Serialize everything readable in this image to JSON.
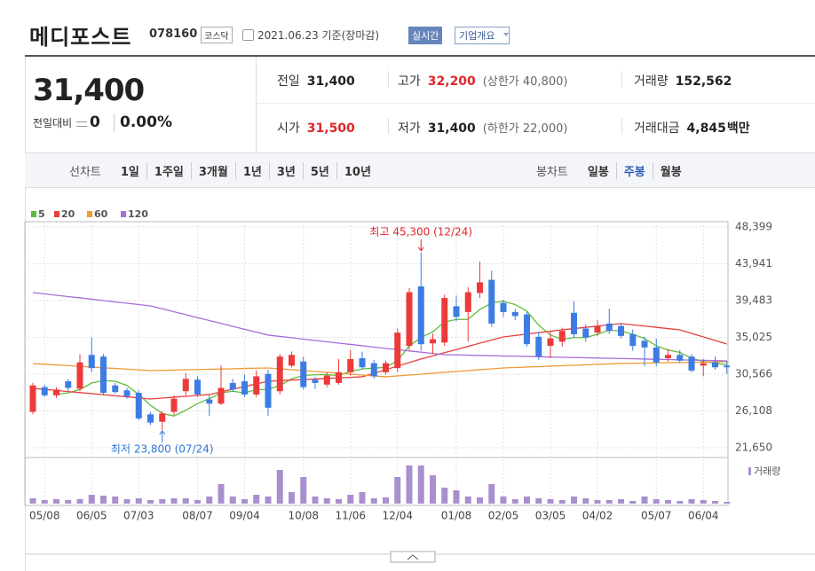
{
  "header": {
    "name": "메디포스트",
    "code": "078160",
    "market": "코스닥",
    "date": "2021.06.23 기준(장마감)",
    "realtime": "실시간",
    "company": "기업개요"
  },
  "quote": {
    "price": "31,400",
    "change_label": "전일대비",
    "change": "0",
    "change_rate": "0.00%"
  },
  "stats": [
    {
      "label": "전일",
      "value": "31,400"
    },
    {
      "label": "고가",
      "value": "32,200",
      "note": "(상한가 40,800)",
      "color": "#e0262b"
    },
    {
      "label": "거래량",
      "value": "152,562"
    },
    {
      "label": "시가",
      "value": "31,500",
      "color": "#e0262b"
    },
    {
      "label": "저가",
      "value": "31,400",
      "note": "(하한가 22,000)"
    },
    {
      "label": "거래대금",
      "value": "4,845",
      "unit": "백만"
    }
  ],
  "tabs": {
    "line_label": "선차트",
    "line": [
      "1일",
      "1주일",
      "3개월",
      "1년",
      "3년",
      "5년",
      "10년"
    ],
    "candle_label": "봉차트",
    "candle": [
      "일봉",
      "주봉",
      "월봉"
    ],
    "active_candle": 1
  },
  "chart": {
    "type": "candlestick",
    "up_color": "#ec3a3a",
    "down_color": "#3c7ce4",
    "ma": [
      {
        "name": "5",
        "color": "#60bd3e",
        "values": [
          null,
          null,
          28100,
          28300,
          28700,
          29500,
          29800,
          29700,
          29200,
          28100,
          26800,
          25800,
          25500,
          26200,
          27000,
          27600,
          28300,
          28500,
          28300,
          28700,
          28700,
          29200,
          30000,
          30400,
          30500,
          30500,
          30400,
          30900,
          31200,
          31300,
          31400,
          32200,
          34000,
          35000,
          35700,
          36900,
          37200,
          37200,
          38400,
          39200,
          39400,
          39000,
          38200,
          36500,
          35300,
          34800,
          35000,
          35000,
          35400,
          35900,
          35800,
          35400,
          34900,
          34000,
          33500,
          33200,
          32500,
          32100,
          31900,
          31700
        ]
      },
      {
        "name": "20",
        "color": "#e6413f",
        "values": [
          28850,
          28720,
          28590,
          28460,
          28330,
          28210,
          28080,
          27950,
          27820,
          27690,
          27560,
          27670,
          27780,
          27880,
          27990,
          28100,
          28420,
          28750,
          29070,
          29390,
          29710,
          29780,
          29850,
          29910,
          29980,
          30050,
          30120,
          30180,
          30250,
          30680,
          31110,
          31540,
          31970,
          32400,
          32780,
          33170,
          33550,
          33930,
          34320,
          34700,
          35080,
          35250,
          35420,
          35600,
          35770,
          35940,
          36090,
          36240,
          36390,
          36540,
          36690,
          36540,
          36390,
          36240,
          36090,
          35940,
          35510,
          35080,
          34650,
          34220
        ]
      },
      {
        "name": "60",
        "color": "#f29a37",
        "values": [
          31860,
          31770,
          31690,
          31600,
          31520,
          31430,
          31340,
          31260,
          31170,
          31090,
          31000,
          31030,
          31060,
          31100,
          31130,
          31160,
          31190,
          31220,
          31260,
          31290,
          31320,
          31210,
          31110,
          31000,
          30890,
          30790,
          30680,
          30570,
          30460,
          30360,
          30250,
          30360,
          30460,
          30570,
          30680,
          30790,
          30890,
          31000,
          31110,
          31210,
          31320,
          31370,
          31430,
          31480,
          31540,
          31590,
          31640,
          31700,
          31750,
          31810,
          31860,
          31880,
          31910,
          31930,
          31950,
          31980,
          32000,
          32020,
          32050,
          32070
        ]
      },
      {
        "name": "120",
        "color": "#a96dd8",
        "values": [
          40450,
          40290,
          40130,
          39970,
          39810,
          39650,
          39480,
          39320,
          39160,
          39000,
          38840,
          38490,
          38130,
          37780,
          37420,
          37070,
          36720,
          36360,
          36010,
          35650,
          35300,
          35140,
          34980,
          34810,
          34650,
          34490,
          34330,
          34170,
          34010,
          33840,
          33680,
          33530,
          33380,
          33230,
          33080,
          32930,
          32900,
          32870,
          32830,
          32800,
          32770,
          32740,
          32710,
          32680,
          32640,
          32610,
          32580,
          32550,
          32520,
          32490,
          32460,
          32430,
          32400,
          32370,
          32340,
          32300,
          32270,
          32240,
          32210,
          32180
        ]
      }
    ],
    "categories": [
      null,
      "05/08",
      null,
      null,
      null,
      "06/05",
      null,
      null,
      null,
      "07/03",
      null,
      null,
      null,
      null,
      "08/07",
      null,
      null,
      null,
      "09/04",
      null,
      null,
      null,
      null,
      "10/08",
      null,
      null,
      null,
      "11/06",
      null,
      null,
      null,
      "12/04",
      null,
      null,
      null,
      null,
      "01/08",
      null,
      null,
      null,
      "02/05",
      null,
      null,
      null,
      "03/05",
      null,
      null,
      null,
      "04/02",
      null,
      null,
      null,
      null,
      "05/07",
      null,
      null,
      null,
      "06/04",
      null,
      null
    ],
    "open": [
      26000,
      29000,
      28000,
      29700,
      28800,
      32900,
      32700,
      29200,
      28600,
      28300,
      25700,
      24800,
      26000,
      28500,
      29900,
      27500,
      27000,
      29500,
      29700,
      28100,
      30600,
      28500,
      31600,
      32100,
      29900,
      29300,
      29500,
      30800,
      32500,
      31900,
      30800,
      31300,
      34000,
      41200,
      34300,
      34400,
      38800,
      38100,
      40400,
      42000,
      39200,
      38100,
      37800,
      35100,
      34000,
      34500,
      38000,
      36100,
      35600,
      36700,
      36400,
      35400,
      34600,
      33800,
      32500,
      32900,
      32700,
      31600,
      32000,
      31600
    ],
    "high": [
      29500,
      29300,
      29000,
      30000,
      33000,
      35000,
      33000,
      29500,
      28900,
      28600,
      26000,
      26100,
      28000,
      30700,
      30300,
      28000,
      31600,
      30000,
      30500,
      31000,
      31100,
      33000,
      33300,
      32700,
      30200,
      30800,
      32400,
      33500,
      33300,
      32300,
      32200,
      36100,
      41000,
      45300,
      35500,
      40200,
      40100,
      41100,
      44200,
      43100,
      39600,
      38500,
      38100,
      35700,
      35700,
      36200,
      39400,
      36600,
      37100,
      38500,
      36800,
      36000,
      35100,
      34900,
      33600,
      33500,
      33000,
      32400,
      32700,
      32200
    ],
    "low": [
      25700,
      27800,
      27700,
      28500,
      28500,
      30800,
      28000,
      28200,
      27600,
      25000,
      24400,
      23800,
      25600,
      28000,
      27800,
      25500,
      26800,
      28400,
      27800,
      27800,
      25500,
      28100,
      31400,
      28700,
      28800,
      29000,
      29300,
      30400,
      31200,
      30000,
      30500,
      30800,
      33500,
      33400,
      33000,
      34000,
      37000,
      34500,
      39800,
      36300,
      37500,
      37100,
      33900,
      32300,
      32500,
      33900,
      35000,
      34500,
      35200,
      35400,
      34900,
      33400,
      31500,
      31500,
      32100,
      31900,
      30800,
      30300,
      31100,
      30600
    ],
    "close": [
      29200,
      28000,
      28700,
      28900,
      32000,
      31300,
      28300,
      28400,
      27900,
      25200,
      24700,
      25800,
      27600,
      30000,
      28100,
      27000,
      28900,
      28700,
      28100,
      30300,
      26500,
      32700,
      32900,
      29000,
      29500,
      30400,
      30800,
      32400,
      31400,
      30300,
      31900,
      35600,
      40500,
      34200,
      34800,
      39800,
      37500,
      40500,
      41700,
      36700,
      38100,
      37600,
      34200,
      32700,
      34900,
      35800,
      35400,
      35000,
      36400,
      35800,
      35200,
      34000,
      33800,
      32000,
      32900,
      32200,
      31000,
      31900,
      31400,
      31400
    ],
    "volume": [
      300000,
      200000,
      250000,
      200000,
      250000,
      500000,
      450000,
      400000,
      250000,
      300000,
      200000,
      250000,
      300000,
      300000,
      200000,
      400000,
      1100000,
      400000,
      250000,
      500000,
      400000,
      1900000,
      650000,
      1500000,
      400000,
      300000,
      250000,
      500000,
      650000,
      300000,
      350000,
      1500000,
      2150000,
      2150000,
      1600000,
      900000,
      750000,
      400000,
      350000,
      1100000,
      400000,
      250000,
      400000,
      300000,
      250000,
      200000,
      400000,
      300000,
      200000,
      200000,
      250000,
      150000,
      400000,
      250000,
      200000,
      150000,
      250000,
      200000,
      150000,
      100000
    ],
    "vlim": [
      0,
      2400000
    ],
    "volume_label": "거래량",
    "ylim": [
      21650,
      48399
    ],
    "yticks": [
      {
        "value": 48399,
        "label": "48,399"
      },
      {
        "value": 43941,
        "label": "43,941"
      },
      {
        "value": 39483,
        "label": "39,483"
      },
      {
        "value": 35025,
        "label": "35,025"
      },
      {
        "value": 30566,
        "label": "30,566"
      },
      {
        "value": 26108,
        "label": "26,108"
      },
      {
        "value": 21650,
        "label": "21,650"
      }
    ],
    "high_label": "최고 45,300 (12/24)",
    "low_label": "최저 23,800 (07/24)"
  }
}
